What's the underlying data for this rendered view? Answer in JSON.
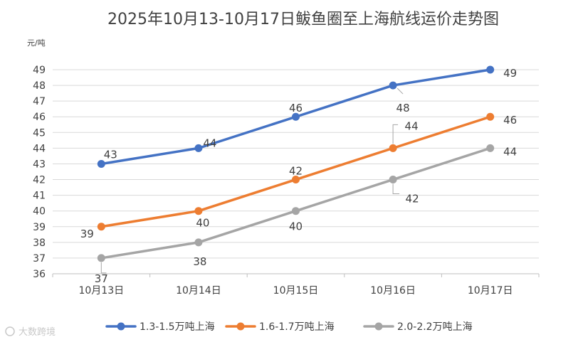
{
  "chart_data": {
    "type": "line",
    "title": "2025年10月13-10月17日鲅鱼圈至上海航线运价走势图",
    "ylabel": "元/吨",
    "xlabel": "",
    "categories": [
      "10月13日",
      "10月14日",
      "10月15日",
      "10月16日",
      "10月17日"
    ],
    "ylim": [
      36,
      49
    ],
    "yticks": [
      36,
      37,
      38,
      39,
      40,
      41,
      42,
      43,
      44,
      45,
      46,
      47,
      48,
      49
    ],
    "grid": true,
    "legend": "bottom",
    "series": [
      {
        "name": "1.3-1.5万吨上海",
        "color": "#4472c4",
        "values": [
          43,
          44,
          46,
          48,
          49
        ]
      },
      {
        "name": "1.6-1.7万吨上海",
        "color": "#ed7d31",
        "values": [
          39,
          40,
          42,
          44,
          46
        ]
      },
      {
        "name": "2.0-2.2万吨上海",
        "color": "#a5a5a5",
        "values": [
          37,
          38,
          40,
          42,
          44
        ]
      }
    ]
  },
  "watermark": "大数跨境"
}
